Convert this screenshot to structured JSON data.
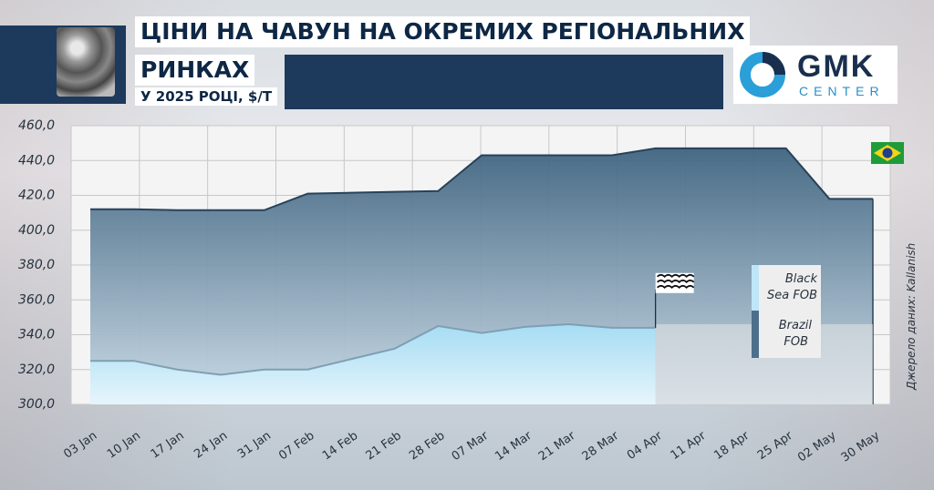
{
  "title": {
    "line1": "ЦІНИ НА ЧАВУН НА ОКРЕМИХ РЕГІОНАЛЬНИХ",
    "line2": "РИНКАХ",
    "line3": "У 2025 РОЦІ, $/Т"
  },
  "logo": {
    "name": "GMK",
    "sub": "CENTER",
    "accent": "#2a9fd8",
    "dark": "#1a2f4e"
  },
  "source": "Джерело даних: Kallanish",
  "icons": {
    "flag": "brazil-flag-icon",
    "wave": "waves-icon",
    "product": "pig-iron-photo"
  },
  "colors": {
    "brazil": "#4d6f8c",
    "black_sea": "#9fd6f0",
    "header": "#1d3a5c"
  },
  "chart_data": {
    "type": "area",
    "ylim": [
      300,
      460
    ],
    "y_ticks": [
      "300,0",
      "320,0",
      "340,0",
      "360,0",
      "380,0",
      "400,0",
      "420,0",
      "440,0",
      "460,0"
    ],
    "y_tick_values": [
      300,
      320,
      340,
      360,
      380,
      400,
      420,
      440,
      460
    ],
    "categories": [
      "03 Jan",
      "10 Jan",
      "17 Jan",
      "24 Jan",
      "31 Jan",
      "07 Feb",
      "14 Feb",
      "21 Feb",
      "28 Feb",
      "07 Mar",
      "14 Mar",
      "21 Mar",
      "28 Mar",
      "04 Apr",
      "11 Apr",
      "18 Apr",
      "25 Apr",
      "02 May",
      "30 May"
    ],
    "grid": true,
    "legend": "right, inside",
    "series": [
      {
        "name": "Brazil FOB",
        "color": "#4d6f8c",
        "values": [
          412,
          412,
          411.5,
          411.5,
          411.5,
          421,
          421.5,
          422,
          422.5,
          443,
          443,
          443,
          443,
          447,
          447,
          447,
          447,
          418,
          418
        ]
      },
      {
        "name": "Black Sea FOB",
        "color": "#9fd6f0",
        "values": [
          325,
          325,
          320,
          317,
          320,
          320,
          326,
          332,
          345,
          341,
          344.5,
          346,
          344,
          344,
          null,
          null,
          null,
          null,
          null
        ]
      }
    ],
    "legend_entries": [
      {
        "line1": "Black",
        "line2": "Sea FOB"
      },
      {
        "line1": "Brazil",
        "line2": "FOB"
      }
    ]
  }
}
